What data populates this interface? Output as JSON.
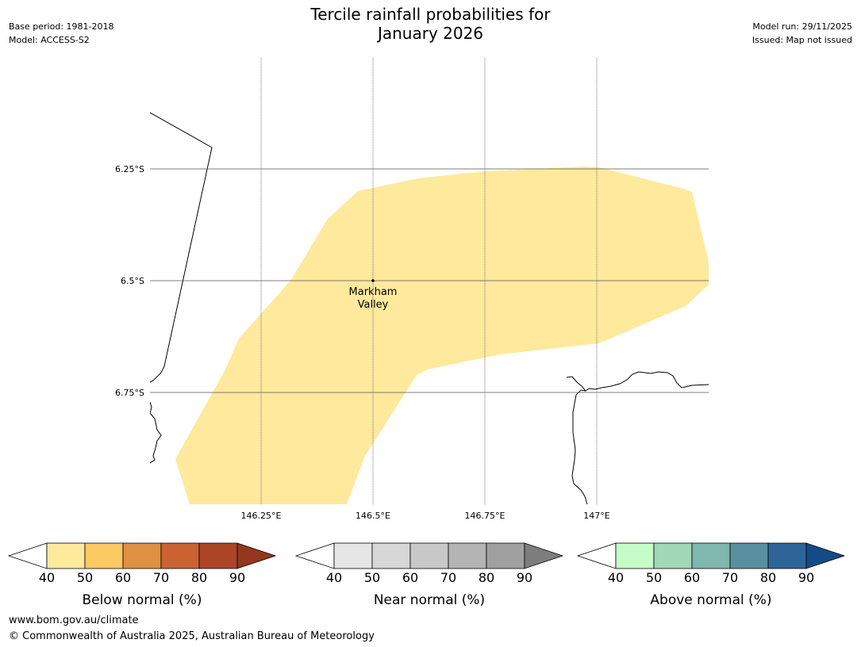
{
  "header": {
    "title_line1": "Tercile rainfall probabilities for",
    "title_line2": "January 2026",
    "base_period": "Base period: 1981-2018",
    "model": "Model: ACCESS-S2",
    "model_run": "Model run: 29/11/2025",
    "issued": "Issued: Map not issued"
  },
  "map": {
    "latitude_labels": [
      "6.25°S",
      "6.5°S",
      "6.75°S"
    ],
    "longitude_labels": [
      "146.25°E",
      "146.5°E",
      "146.75°E",
      "147°E"
    ],
    "location": {
      "name_line1": "Markham",
      "name_line2": "Valley",
      "lon": 146.5,
      "lat": -6.5
    },
    "shaded_region": {
      "category": "Below normal",
      "probability_band": "40-50",
      "color": "#fee99d"
    }
  },
  "legends": [
    {
      "label": "Below normal (%)",
      "ticks": [
        "40",
        "50",
        "60",
        "70",
        "80",
        "90"
      ],
      "colors": [
        "#fee99d",
        "#fdc962",
        "#e09042",
        "#cb6232",
        "#ad4527"
      ],
      "extend_color": "#94371f"
    },
    {
      "label": "Near normal (%)",
      "ticks": [
        "40",
        "50",
        "60",
        "70",
        "80",
        "90"
      ],
      "colors": [
        "#e6e6e6",
        "#d7d7d7",
        "#c8c8c8",
        "#b4b4b4",
        "#a0a0a0"
      ],
      "extend_color": "#7d7d7d"
    },
    {
      "label": "Above normal (%)",
      "ticks": [
        "40",
        "50",
        "60",
        "70",
        "80",
        "90"
      ],
      "colors": [
        "#c6fcc7",
        "#a1d8b8",
        "#80b7af",
        "#5890a1",
        "#2e6598"
      ],
      "extend_color": "#144b86"
    }
  ],
  "footer": {
    "website": "www.bom.gov.au/climate",
    "copyright": "© Commonwealth of Australia 2025, Australian Bureau of Meteorology"
  }
}
